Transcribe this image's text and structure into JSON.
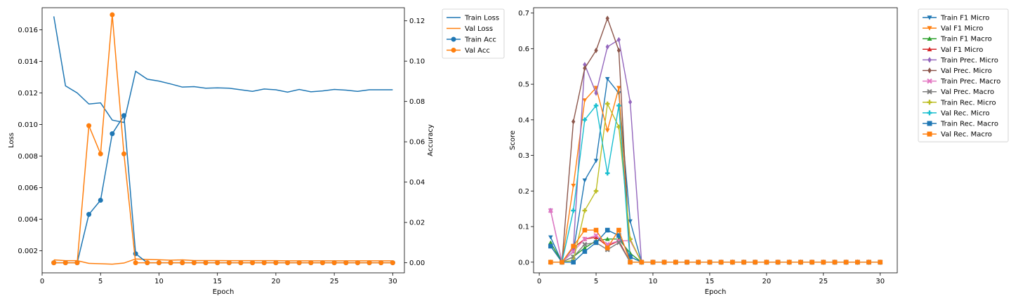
{
  "chart_data": [
    {
      "type": "line",
      "xlabel": "Epoch",
      "ylabel": "Loss",
      "y2label": "Accuracy",
      "xlim": [
        0,
        31
      ],
      "ylim": [
        0.0006,
        0.0174
      ],
      "y2lim": [
        -0.005,
        0.1265
      ],
      "xticks": [
        "0",
        "5",
        "10",
        "15",
        "20",
        "25",
        "30"
      ],
      "yticks": [
        "0.002",
        "0.004",
        "0.006",
        "0.008",
        "0.010",
        "0.012",
        "0.014",
        "0.016"
      ],
      "y2ticks": [
        "0.00",
        "0.02",
        "0.04",
        "0.06",
        "0.08",
        "0.10",
        "0.12"
      ],
      "legend_position": "outside-right",
      "x": [
        1,
        2,
        3,
        4,
        5,
        6,
        7,
        8,
        9,
        10,
        11,
        12,
        13,
        14,
        15,
        16,
        17,
        18,
        19,
        20,
        21,
        22,
        23,
        24,
        25,
        26,
        27,
        28,
        29,
        30
      ],
      "series": [
        {
          "name": "Train Loss",
          "axis": "left",
          "color": "#1f77b4",
          "marker": "none",
          "values": [
            0.01685,
            0.01245,
            0.012,
            0.0113,
            0.01137,
            0.01028,
            0.01013,
            0.01337,
            0.01287,
            0.01275,
            0.01257,
            0.01237,
            0.0124,
            0.0123,
            0.01232,
            0.0123,
            0.0122,
            0.0121,
            0.01225,
            0.0122,
            0.01205,
            0.01222,
            0.01207,
            0.01213,
            0.01222,
            0.01218,
            0.0121,
            0.0122,
            0.0122,
            0.0122
          ]
        },
        {
          "name": "Val Loss",
          "axis": "left",
          "color": "#ff7f0e",
          "marker": "none",
          "values": [
            0.00142,
            0.00137,
            0.00137,
            0.0012,
            0.00118,
            0.00115,
            0.00122,
            0.00148,
            0.00145,
            0.00143,
            0.0014,
            0.00142,
            0.00138,
            0.00138,
            0.00138,
            0.00137,
            0.00137,
            0.00137,
            0.00137,
            0.00137,
            0.00136,
            0.00136,
            0.00136,
            0.00136,
            0.00136,
            0.00136,
            0.00136,
            0.00136,
            0.00136,
            0.00136
          ]
        },
        {
          "name": "Train Acc",
          "axis": "right",
          "color": "#1f77b4",
          "marker": "circle",
          "values": [
            0,
            0,
            0,
            0.024,
            0.031,
            0.064,
            0.073,
            0.0045,
            0,
            0,
            0,
            0,
            0,
            0,
            0,
            0,
            0,
            0,
            0,
            0,
            0,
            0,
            0,
            0,
            0,
            0,
            0,
            0,
            0,
            0
          ]
        },
        {
          "name": "Val Acc",
          "axis": "right",
          "color": "#ff7f0e",
          "marker": "circle",
          "values": [
            0,
            0,
            0,
            0.068,
            0.054,
            0.123,
            0.054,
            0,
            0,
            0,
            0,
            0,
            0,
            0,
            0,
            0,
            0,
            0,
            0,
            0,
            0,
            0,
            0,
            0,
            0,
            0,
            0,
            0,
            0,
            0
          ]
        }
      ]
    },
    {
      "type": "line",
      "xlabel": "Epoch",
      "ylabel": "Score",
      "xlim": [
        -0.5,
        31.5
      ],
      "ylim": [
        -0.03,
        0.715
      ],
      "xticks": [
        "0",
        "5",
        "10",
        "15",
        "20",
        "25",
        "30"
      ],
      "yticks": [
        "0.0",
        "0.1",
        "0.2",
        "0.3",
        "0.4",
        "0.5",
        "0.6",
        "0.7"
      ],
      "legend_position": "outside-right",
      "x": [
        1,
        2,
        3,
        4,
        5,
        6,
        7,
        8,
        9,
        10,
        11,
        12,
        13,
        14,
        15,
        16,
        17,
        18,
        19,
        20,
        21,
        22,
        23,
        24,
        25,
        26,
        27,
        28,
        29,
        30
      ],
      "series": [
        {
          "name": "Train F1 Micro",
          "color": "#1f77b4",
          "marker": "triangle-down",
          "values": [
            0.07,
            0,
            0.03,
            0.23,
            0.285,
            0.515,
            0.475,
            0.115,
            0,
            0,
            0,
            0,
            0,
            0,
            0,
            0,
            0,
            0,
            0,
            0,
            0,
            0,
            0,
            0,
            0,
            0,
            0,
            0,
            0,
            0
          ]
        },
        {
          "name": "Val F1 Micro",
          "color": "#ff7f0e",
          "marker": "triangle-down",
          "values": [
            0,
            0,
            0.215,
            0.455,
            0.49,
            0.37,
            0.49,
            0,
            0,
            0,
            0,
            0,
            0,
            0,
            0,
            0,
            0,
            0,
            0,
            0,
            0,
            0,
            0,
            0,
            0,
            0,
            0,
            0,
            0,
            0
          ]
        },
        {
          "name": "Train F1 Macro",
          "color": "#2ca02c",
          "marker": "triangle-up",
          "values": [
            0.055,
            0,
            0.015,
            0.04,
            0.06,
            0.065,
            0.065,
            0.025,
            0,
            0,
            0,
            0,
            0,
            0,
            0,
            0,
            0,
            0,
            0,
            0,
            0,
            0,
            0,
            0,
            0,
            0,
            0,
            0,
            0,
            0
          ]
        },
        {
          "name": "Val F1 Micro",
          "color": "#d62728",
          "marker": "triangle-up",
          "values": [
            0,
            0,
            0.04,
            0.065,
            0.07,
            0.045,
            0.06,
            0,
            0,
            0,
            0,
            0,
            0,
            0,
            0,
            0,
            0,
            0,
            0,
            0,
            0,
            0,
            0,
            0,
            0,
            0,
            0,
            0,
            0,
            0
          ]
        },
        {
          "name": "Train Prec. Micro",
          "color": "#9467bd",
          "marker": "diamond",
          "values": [
            0.145,
            0,
            0.04,
            0.555,
            0.475,
            0.605,
            0.625,
            0.45,
            0,
            0,
            0,
            0,
            0,
            0,
            0,
            0,
            0,
            0,
            0,
            0,
            0,
            0,
            0,
            0,
            0,
            0,
            0,
            0,
            0,
            0
          ]
        },
        {
          "name": "Val Prec. Micro",
          "color": "#8c564b",
          "marker": "diamond",
          "values": [
            0,
            0,
            0.395,
            0.545,
            0.595,
            0.685,
            0.595,
            0,
            0,
            0,
            0,
            0,
            0,
            0,
            0,
            0,
            0,
            0,
            0,
            0,
            0,
            0,
            0,
            0,
            0,
            0,
            0,
            0,
            0,
            0
          ]
        },
        {
          "name": "Train Prec. Macro",
          "color": "#e377c2",
          "marker": "x",
          "values": [
            0.145,
            0,
            0.03,
            0.065,
            0.075,
            0.05,
            0.06,
            0.06,
            0,
            0,
            0,
            0,
            0,
            0,
            0,
            0,
            0,
            0,
            0,
            0,
            0,
            0,
            0,
            0,
            0,
            0,
            0,
            0,
            0,
            0
          ]
        },
        {
          "name": "Val Prec. Macro",
          "color": "#7f7f7f",
          "marker": "x",
          "values": [
            0,
            0,
            0.015,
            0.05,
            0.055,
            0.035,
            0.055,
            0,
            0,
            0,
            0,
            0,
            0,
            0,
            0,
            0,
            0,
            0,
            0,
            0,
            0,
            0,
            0,
            0,
            0,
            0,
            0,
            0,
            0,
            0
          ]
        },
        {
          "name": "Train Rec. Micro",
          "color": "#bcbd22",
          "marker": "plus",
          "values": [
            0.045,
            0,
            0.005,
            0.145,
            0.2,
            0.445,
            0.38,
            0.065,
            0,
            0,
            0,
            0,
            0,
            0,
            0,
            0,
            0,
            0,
            0,
            0,
            0,
            0,
            0,
            0,
            0,
            0,
            0,
            0,
            0,
            0
          ]
        },
        {
          "name": "Val Rec. Micro",
          "color": "#17becf",
          "marker": "plus",
          "values": [
            0,
            0,
            0.145,
            0.4,
            0.44,
            0.25,
            0.44,
            0,
            0,
            0,
            0,
            0,
            0,
            0,
            0,
            0,
            0,
            0,
            0,
            0,
            0,
            0,
            0,
            0,
            0,
            0,
            0,
            0,
            0,
            0
          ]
        },
        {
          "name": "Train Rec. Macro",
          "color": "#1f77b4",
          "marker": "square",
          "values": [
            0.045,
            0,
            0,
            0.03,
            0.055,
            0.09,
            0.075,
            0.015,
            0,
            0,
            0,
            0,
            0,
            0,
            0,
            0,
            0,
            0,
            0,
            0,
            0,
            0,
            0,
            0,
            0,
            0,
            0,
            0,
            0,
            0
          ]
        },
        {
          "name": "Val Rec. Macro",
          "color": "#ff7f0e",
          "marker": "square",
          "values": [
            0,
            0,
            0.045,
            0.09,
            0.09,
            0.04,
            0.09,
            0,
            0,
            0,
            0,
            0,
            0,
            0,
            0,
            0,
            0,
            0,
            0,
            0,
            0,
            0,
            0,
            0,
            0,
            0,
            0,
            0,
            0,
            0
          ]
        }
      ]
    }
  ]
}
